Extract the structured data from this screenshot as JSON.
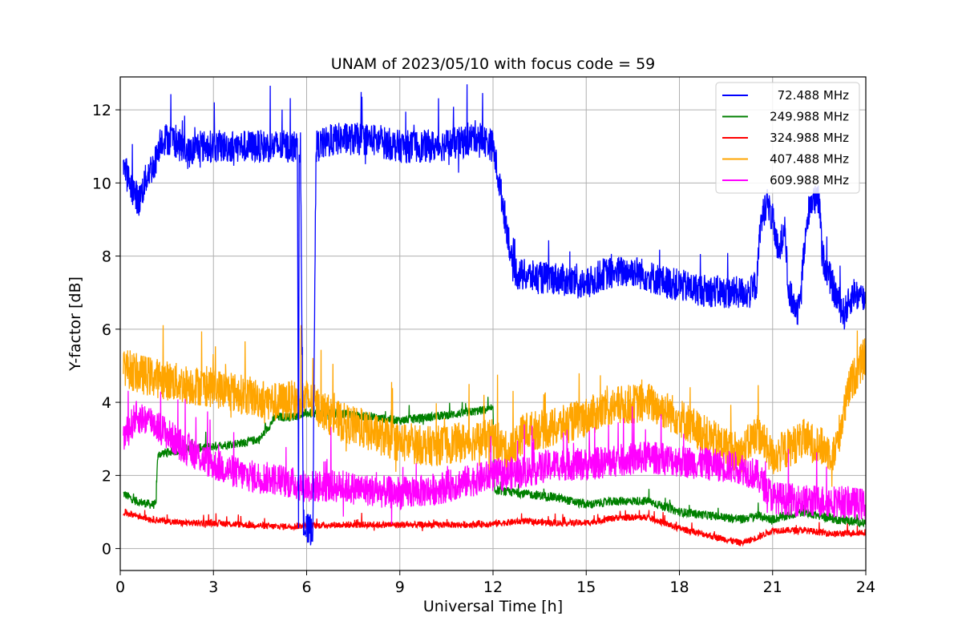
{
  "chart_data": {
    "type": "line",
    "title": "UNAM of 2023/05/10 with focus code = 59",
    "xlabel": "Universal Time [h]",
    "ylabel": "Y-factor [dB]",
    "xlim": [
      0,
      24
    ],
    "ylim": [
      -0.6,
      12.9
    ],
    "xticks": [
      "0",
      "3",
      "6",
      "9",
      "12",
      "15",
      "18",
      "21",
      "24"
    ],
    "yticks": [
      "0",
      "2",
      "4",
      "6",
      "8",
      "10",
      "12"
    ],
    "grid": true,
    "legend_position": "top-right",
    "series": [
      {
        "name": "72.488 MHz",
        "color": "#0000ff",
        "noise": 0.45,
        "points": [
          [
            0.1,
            10.5
          ],
          [
            0.3,
            10.0
          ],
          [
            0.6,
            9.5
          ],
          [
            0.9,
            10.3
          ],
          [
            1.1,
            10.5
          ],
          [
            1.3,
            11.2
          ],
          [
            1.7,
            11.2
          ],
          [
            2.2,
            10.8
          ],
          [
            2.5,
            11.0
          ],
          [
            3.0,
            11.0
          ],
          [
            4.0,
            11.0
          ],
          [
            5.0,
            11.0
          ],
          [
            5.7,
            11.0
          ],
          [
            5.74,
            1.0
          ],
          [
            5.76,
            11.0
          ],
          [
            5.8,
            11.0
          ],
          [
            5.9,
            0.5
          ],
          [
            6.0,
            0.5
          ],
          [
            6.1,
            0.5
          ],
          [
            6.2,
            0.6
          ],
          [
            6.3,
            11.0
          ],
          [
            7.0,
            11.2
          ],
          [
            8.0,
            11.2
          ],
          [
            9.0,
            11.0
          ],
          [
            10.0,
            11.0
          ],
          [
            11.0,
            11.1
          ],
          [
            11.5,
            11.3
          ],
          [
            12.0,
            11.0
          ],
          [
            12.3,
            9.5
          ],
          [
            12.5,
            8.5
          ],
          [
            12.6,
            7.8
          ],
          [
            12.8,
            7.5
          ],
          [
            13.5,
            7.4
          ],
          [
            14.0,
            7.4
          ],
          [
            15.0,
            7.2
          ],
          [
            15.5,
            7.5
          ],
          [
            16.5,
            7.6
          ],
          [
            17.5,
            7.3
          ],
          [
            18.5,
            7.1
          ],
          [
            19.5,
            7.0
          ],
          [
            20.3,
            7.0
          ],
          [
            20.5,
            7.3
          ],
          [
            20.6,
            8.8
          ],
          [
            20.8,
            9.5
          ],
          [
            21.0,
            9.0
          ],
          [
            21.2,
            8.0
          ],
          [
            21.4,
            9.0
          ],
          [
            21.5,
            7.0
          ],
          [
            21.8,
            6.5
          ],
          [
            22.0,
            8.0
          ],
          [
            22.2,
            9.5
          ],
          [
            22.5,
            9.5
          ],
          [
            22.6,
            8.0
          ],
          [
            23.0,
            7.0
          ],
          [
            23.3,
            6.4
          ],
          [
            23.6,
            7.0
          ],
          [
            24.0,
            6.8
          ]
        ]
      },
      {
        "name": "249.988 MHz",
        "color": "#008000",
        "noise": 0.12,
        "points": [
          [
            0.1,
            1.5
          ],
          [
            0.5,
            1.3
          ],
          [
            1.0,
            1.2
          ],
          [
            1.15,
            1.2
          ],
          [
            1.2,
            2.5
          ],
          [
            1.3,
            2.6
          ],
          [
            2.0,
            2.7
          ],
          [
            3.0,
            2.8
          ],
          [
            4.0,
            2.9
          ],
          [
            4.5,
            3.0
          ],
          [
            5.0,
            3.6
          ],
          [
            5.5,
            3.6
          ],
          [
            6.0,
            3.7
          ],
          [
            7.0,
            3.7
          ],
          [
            8.0,
            3.6
          ],
          [
            9.0,
            3.5
          ],
          [
            10.0,
            3.6
          ],
          [
            11.0,
            3.7
          ],
          [
            11.8,
            3.8
          ],
          [
            12.0,
            3.8
          ],
          [
            12.05,
            1.6
          ],
          [
            13.0,
            1.5
          ],
          [
            14.0,
            1.4
          ],
          [
            15.0,
            1.2
          ],
          [
            16.0,
            1.3
          ],
          [
            17.0,
            1.3
          ],
          [
            18.0,
            1.0
          ],
          [
            19.0,
            0.9
          ],
          [
            20.0,
            0.8
          ],
          [
            20.5,
            0.9
          ],
          [
            21.0,
            0.8
          ],
          [
            22.0,
            1.0
          ],
          [
            23.0,
            0.8
          ],
          [
            24.0,
            0.7
          ]
        ]
      },
      {
        "name": "324.988 MHz",
        "color": "#ff0000",
        "noise": 0.09,
        "points": [
          [
            0.1,
            1.0
          ],
          [
            1.0,
            0.8
          ],
          [
            2.0,
            0.7
          ],
          [
            3.0,
            0.7
          ],
          [
            4.0,
            0.65
          ],
          [
            5.0,
            0.6
          ],
          [
            6.0,
            0.62
          ],
          [
            7.0,
            0.65
          ],
          [
            8.0,
            0.65
          ],
          [
            9.0,
            0.65
          ],
          [
            10.0,
            0.65
          ],
          [
            11.0,
            0.65
          ],
          [
            12.0,
            0.68
          ],
          [
            13.0,
            0.75
          ],
          [
            14.0,
            0.7
          ],
          [
            15.0,
            0.7
          ],
          [
            16.0,
            0.85
          ],
          [
            17.0,
            0.85
          ],
          [
            18.0,
            0.55
          ],
          [
            19.0,
            0.35
          ],
          [
            20.0,
            0.15
          ],
          [
            20.5,
            0.3
          ],
          [
            21.0,
            0.5
          ],
          [
            22.0,
            0.5
          ],
          [
            23.0,
            0.4
          ],
          [
            24.0,
            0.45
          ]
        ]
      },
      {
        "name": "407.488 MHz",
        "color": "#ffa500",
        "noise": 0.55,
        "points": [
          [
            0.1,
            5.0
          ],
          [
            0.5,
            4.8
          ],
          [
            1.0,
            4.7
          ],
          [
            2.0,
            4.5
          ],
          [
            3.0,
            4.4
          ],
          [
            4.0,
            4.2
          ],
          [
            5.0,
            4.0
          ],
          [
            6.0,
            4.1
          ],
          [
            7.0,
            3.5
          ],
          [
            8.0,
            3.2
          ],
          [
            9.0,
            2.9
          ],
          [
            10.0,
            2.8
          ],
          [
            11.0,
            2.9
          ],
          [
            12.0,
            3.0
          ],
          [
            12.5,
            2.6
          ],
          [
            13.0,
            3.2
          ],
          [
            14.0,
            3.3
          ],
          [
            15.0,
            3.6
          ],
          [
            16.0,
            3.9
          ],
          [
            17.0,
            4.0
          ],
          [
            18.0,
            3.6
          ],
          [
            19.0,
            3.0
          ],
          [
            20.0,
            2.6
          ],
          [
            20.5,
            3.2
          ],
          [
            21.0,
            2.5
          ],
          [
            22.0,
            3.0
          ],
          [
            23.0,
            2.6
          ],
          [
            23.5,
            4.5
          ],
          [
            24.0,
            5.3
          ]
        ]
      },
      {
        "name": "609.988 MHz",
        "color": "#ff00ff",
        "noise": 0.45,
        "points": [
          [
            0.1,
            3.0
          ],
          [
            0.5,
            3.6
          ],
          [
            1.0,
            3.5
          ],
          [
            2.0,
            2.8
          ],
          [
            3.0,
            2.3
          ],
          [
            4.0,
            2.0
          ],
          [
            5.0,
            1.9
          ],
          [
            6.0,
            1.7
          ],
          [
            7.0,
            1.7
          ],
          [
            8.0,
            1.6
          ],
          [
            9.0,
            1.5
          ],
          [
            10.0,
            1.6
          ],
          [
            11.0,
            1.8
          ],
          [
            12.0,
            2.0
          ],
          [
            13.0,
            2.1
          ],
          [
            14.0,
            2.3
          ],
          [
            15.0,
            2.3
          ],
          [
            16.0,
            2.4
          ],
          [
            17.0,
            2.5
          ],
          [
            18.0,
            2.4
          ],
          [
            19.0,
            2.3
          ],
          [
            20.0,
            2.2
          ],
          [
            20.5,
            2.0
          ],
          [
            21.0,
            1.4
          ],
          [
            22.0,
            1.3
          ],
          [
            23.0,
            1.3
          ],
          [
            24.0,
            1.2
          ]
        ]
      }
    ]
  }
}
